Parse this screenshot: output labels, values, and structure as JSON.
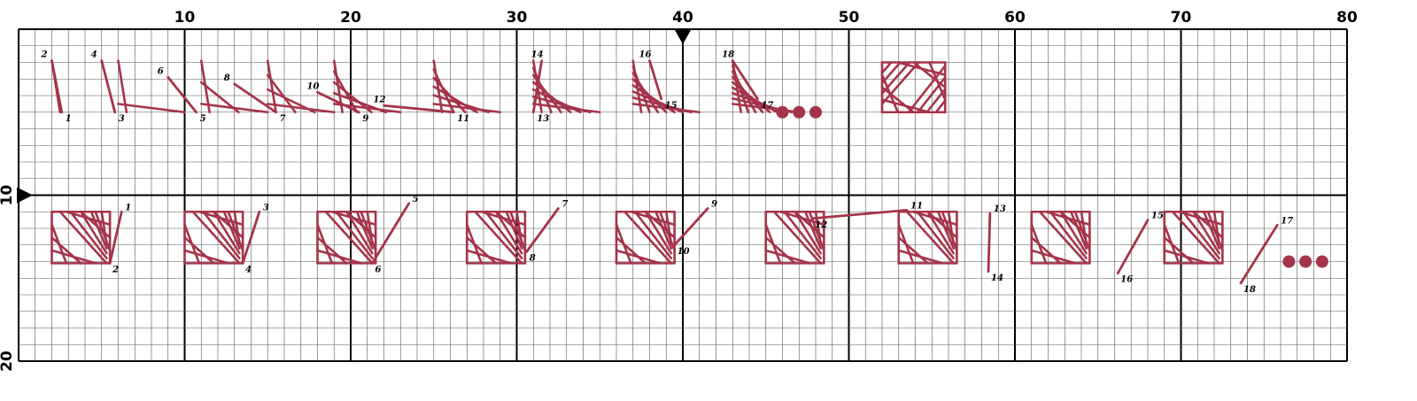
{
  "chart_data": {
    "type": "diagram",
    "grid": {
      "cols": 80,
      "rows": 20,
      "major_every": 10
    },
    "x_ticks": [
      "10",
      "20",
      "30",
      "40",
      "50",
      "60",
      "70",
      "80"
    ],
    "y_ticks": [
      "10",
      "20"
    ],
    "center_markers": {
      "x": 40,
      "y": 10
    },
    "thread_color": "#a5344a",
    "row1": {
      "stitches": [
        {
          "label_start": "2",
          "label_end": "1",
          "s": [
            2,
            1.9
          ],
          "e": [
            2.6,
            5
          ]
        },
        {
          "label_start": "4",
          "label_end": "3",
          "s": [
            5,
            1.9
          ],
          "e": [
            5.8,
            5
          ]
        },
        {
          "label_start": "6",
          "label_end": "5",
          "s": [
            9,
            2.9
          ],
          "e": [
            10.7,
            5
          ]
        },
        {
          "label_start": "8",
          "label_end": "7",
          "s": [
            13,
            3.3
          ],
          "e": [
            15.5,
            5
          ]
        },
        {
          "label_start": "10",
          "label_end": "9",
          "s": [
            18,
            3.8
          ],
          "e": [
            20.5,
            5
          ]
        },
        {
          "label_start": "12",
          "label_end": "11",
          "s": [
            22,
            4.6
          ],
          "e": [
            26.2,
            5
          ]
        },
        {
          "label_start": "14",
          "label_end": "13",
          "s": [
            31.5,
            1.9
          ],
          "e": [
            31,
            5
          ]
        },
        {
          "label_start": "16",
          "label_end": "15",
          "s": [
            38,
            1.9
          ],
          "e": [
            38.7,
            4.2
          ]
        },
        {
          "label_start": "18",
          "label_end": "17",
          "s": [
            43,
            1.9
          ],
          "e": [
            44.5,
            4.2
          ]
        }
      ],
      "groups": [
        {
          "cell": 0,
          "n": 1
        },
        {
          "cell": 4,
          "n": 2
        },
        {
          "cell": 9,
          "n": 3
        },
        {
          "cell": 13,
          "n": 4
        },
        {
          "cell": 17,
          "n": 5
        },
        {
          "cell": 23,
          "n": 6
        },
        {
          "cell": 29,
          "n": 7
        },
        {
          "cell": 35,
          "n": 8
        },
        {
          "cell": 41,
          "n": 9
        }
      ],
      "dots": [
        46,
        47,
        48
      ],
      "complete": {
        "cell": 52
      }
    },
    "row2": {
      "stitches": [
        {
          "label_start": "1",
          "label_end": "2",
          "s": [
            6.2,
            11
          ],
          "e": [
            5.5,
            14.1
          ]
        },
        {
          "label_start": "3",
          "label_end": "4",
          "s": [
            14.5,
            11
          ],
          "e": [
            13.5,
            14.1
          ]
        },
        {
          "label_start": "5",
          "label_end": "6",
          "s": [
            23.5,
            10.5
          ],
          "e": [
            21.3,
            14.1
          ]
        },
        {
          "label_start": "7",
          "label_end": "8",
          "s": [
            32.5,
            10.8
          ],
          "e": [
            30.6,
            13.4
          ]
        },
        {
          "label_start": "9",
          "label_end": "10",
          "s": [
            41.5,
            10.8
          ],
          "e": [
            39.5,
            13
          ]
        },
        {
          "label_start": "11",
          "label_end": "12",
          "s": [
            53.5,
            10.9
          ],
          "e": [
            47.8,
            11.4
          ]
        },
        {
          "label_start": "13",
          "label_end": "14",
          "s": [
            58.5,
            11.1
          ],
          "e": [
            58.4,
            14.6
          ]
        },
        {
          "label_start": "15",
          "label_end": "16",
          "s": [
            68,
            11.5
          ],
          "e": [
            66.2,
            14.7
          ]
        },
        {
          "label_start": "17",
          "label_end": "18",
          "s": [
            75.8,
            11.8
          ],
          "e": [
            73.6,
            15.3
          ]
        }
      ],
      "groups": [
        {
          "cell": 2,
          "n": 9,
          "sweep": 1
        },
        {
          "cell": 10,
          "n": 9,
          "sweep": 2
        },
        {
          "cell": 18,
          "n": 9,
          "sweep": 3
        },
        {
          "cell": 27,
          "n": 9,
          "sweep": 4
        },
        {
          "cell": 36,
          "n": 9,
          "sweep": 5
        },
        {
          "cell": 45,
          "n": 9,
          "sweep": 6
        },
        {
          "cell": 53,
          "n": 9,
          "sweep": 7
        },
        {
          "cell": 61,
          "n": 9,
          "sweep": 8
        },
        {
          "cell": 69,
          "n": 9,
          "sweep": 9
        }
      ],
      "dots": [
        76.5,
        77.5,
        78.5
      ]
    }
  }
}
